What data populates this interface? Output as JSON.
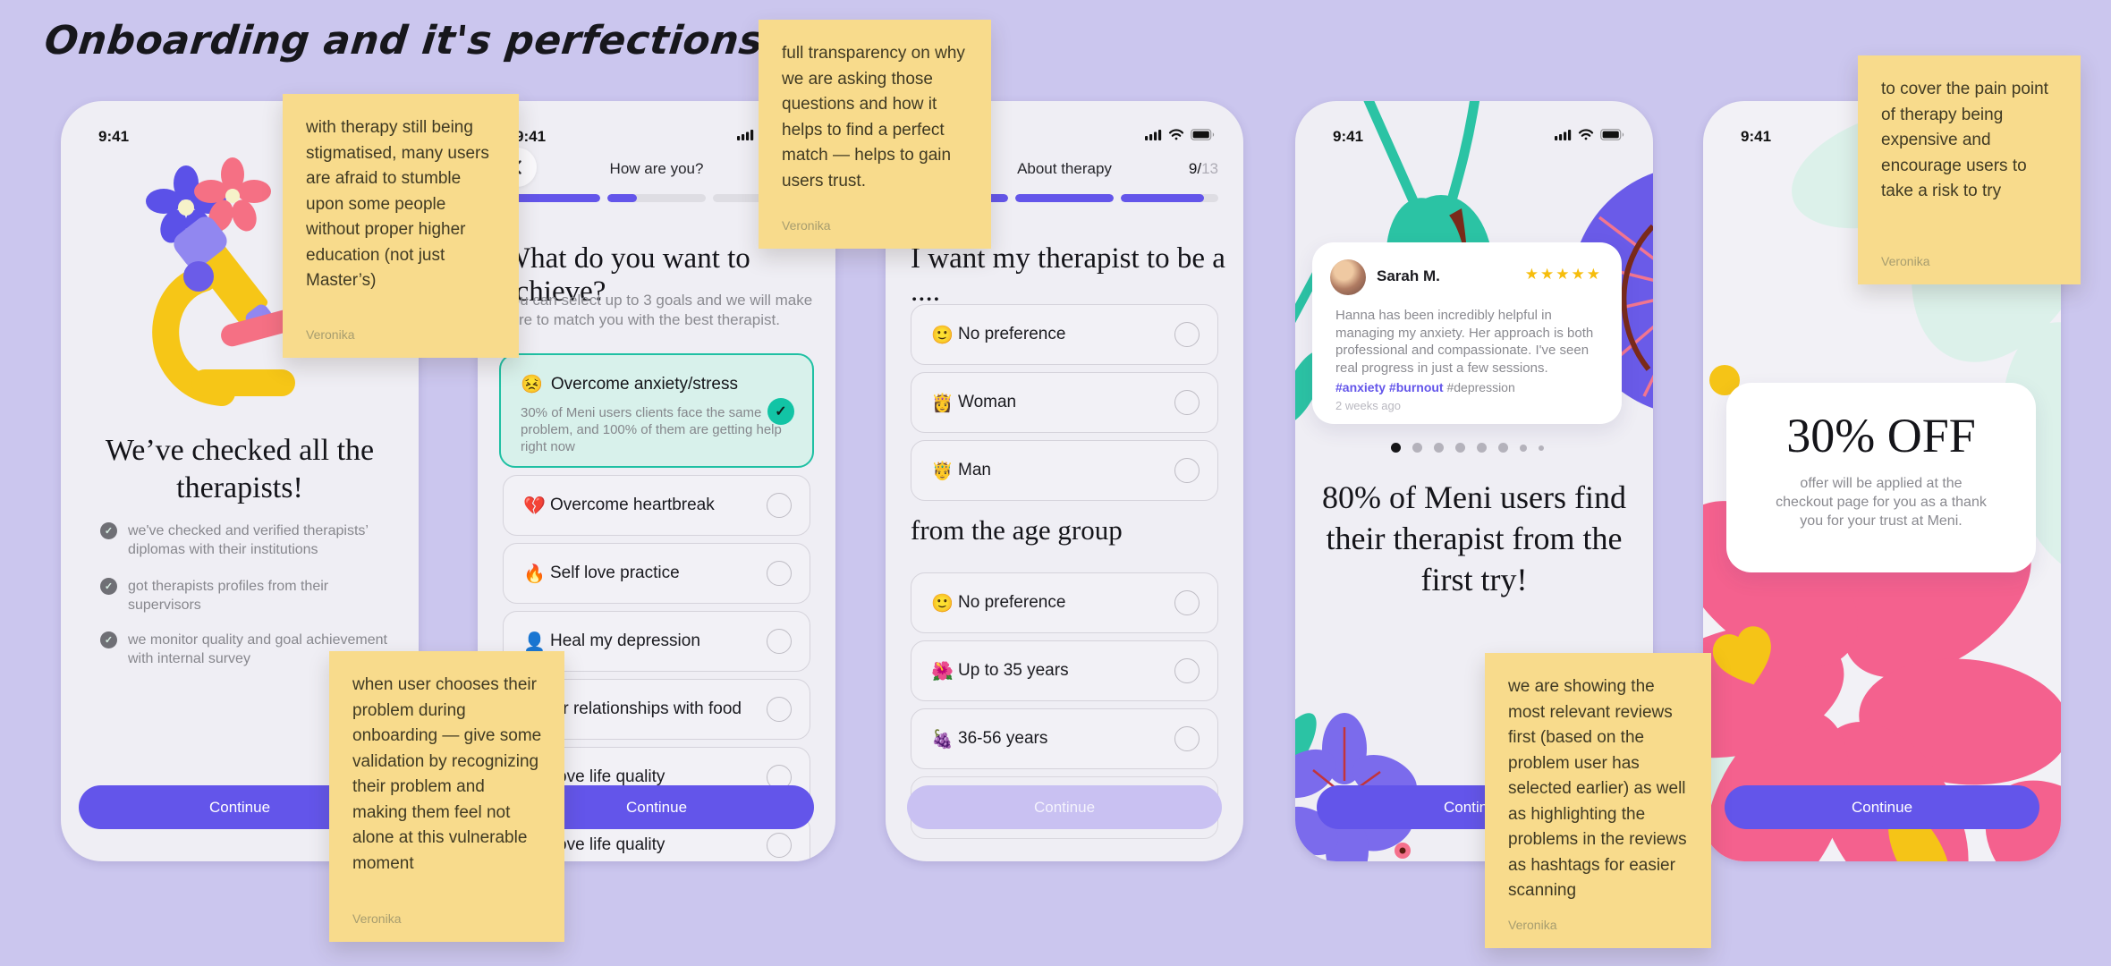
{
  "board": {
    "title": "Onboarding and it's perfections"
  },
  "colors": {
    "board_bg": "#CBC6EE",
    "accent_purple": "#6355EA",
    "teal": "#14C3A5",
    "teal_bg": "#D8F1EB",
    "sticky_yellow": "#F8DB8C",
    "pink": "#F4618E",
    "yellow": "#F5C417",
    "flower_purple": "#6A5BE8",
    "star_gold": "#F6BD0C",
    "disabled_button": "#C9C1F2"
  },
  "phone1": {
    "time": "9:41",
    "headline": "We’ve checked all the\ntherapists!",
    "checklist": [
      "we've checked and verified therapists’\ndiplomas with their institutions",
      "got therapists profiles from their\nsupervisors",
      "we monitor quality and goal achievement\nwith internal survey"
    ],
    "continue_label": "Continue"
  },
  "phone2": {
    "time": "9:41",
    "nav_title": "How are you?",
    "progress": [
      100,
      30,
      0
    ],
    "headline": "What do you want to achieve?",
    "subtext": "You can select up to 3 goals and we will make\nsure to match you with the best therapist.",
    "selected": {
      "emoji": "😣",
      "label": "Overcome anxiety/stress",
      "description": "30% of Meni users clients face the same\nproblem, and 100% of them are getting help\nright now"
    },
    "options": [
      {
        "emoji": "💔",
        "label": "Overcome heartbreak"
      },
      {
        "emoji": "🔥",
        "label": "Self love practice"
      },
      {
        "emoji": "👤",
        "label": "Heal my depression"
      },
      {
        "emoji": "",
        "label": "Better relationships with food"
      },
      {
        "emoji": "",
        "label": "Improve life quality"
      },
      {
        "emoji": "",
        "label": "Improve life quality"
      }
    ],
    "continue_label": "Continue"
  },
  "phone3": {
    "nav_title": "About therapy",
    "step_current": "9/",
    "step_total": "13",
    "progress": [
      100,
      100,
      85
    ],
    "headline_gender": "I want my therapist to be a ....",
    "gender_options": [
      {
        "emoji": "🙂",
        "label": "No preference"
      },
      {
        "emoji": "👸",
        "label": "Woman"
      },
      {
        "emoji": "🤴",
        "label": "Man"
      }
    ],
    "headline_age": "from the age group",
    "age_options": [
      {
        "emoji": "🙂",
        "label": "No preference"
      },
      {
        "emoji": "🌺",
        "label": "Up to 35 years"
      },
      {
        "emoji": "🍇",
        "label": "36-56 years"
      }
    ],
    "continue_label": "Continue"
  },
  "phone4": {
    "time": "9:41",
    "review": {
      "name": "Sarah M.",
      "stars": "★★★★★",
      "text": "Hanna has been incredibly helpful in\nmanaging my anxiety. Her approach is both\nprofessional and compassionate. I've seen\nreal progress in just a few sessions.",
      "tags_highlighted": "#anxiety #burnout",
      "tag_muted": " #depression",
      "date": "2 weeks ago"
    },
    "pagination": {
      "total": 8,
      "active_index": 1
    },
    "headline": "80% of Meni users find\ntheir therapist from the\nfirst try!",
    "continue_label": "Continue"
  },
  "phone5": {
    "time": "9:41",
    "offer_title": "30% OFF",
    "offer_text": "offer will be applied at the\ncheckout page for you as a thank\nyou for your trust at Meni.",
    "continue_label": "Continue"
  },
  "stickies": [
    {
      "text": "with therapy still being stigmatised, many users are afraid to stumble upon some people without proper higher education (not just Master’s)",
      "author": "Veronika"
    },
    {
      "text": "full transparency on why we are asking those questions and how it helps to find a perfect match — helps to gain users trust.",
      "author": "Veronika"
    },
    {
      "text": "when user chooses their problem during onboarding — give some validation by recognizing their problem and making them feel not alone at this vulnerable moment",
      "author": "Veronika"
    },
    {
      "text": "we are showing the most relevant reviews first (based on the problem user has selected earlier) as well as highlighting the problems in the reviews as hashtags for easier scanning",
      "author": "Veronika"
    },
    {
      "text": "to cover the pain point of therapy being expensive and encourage users to take a risk to try",
      "author": "Veronika"
    }
  ]
}
